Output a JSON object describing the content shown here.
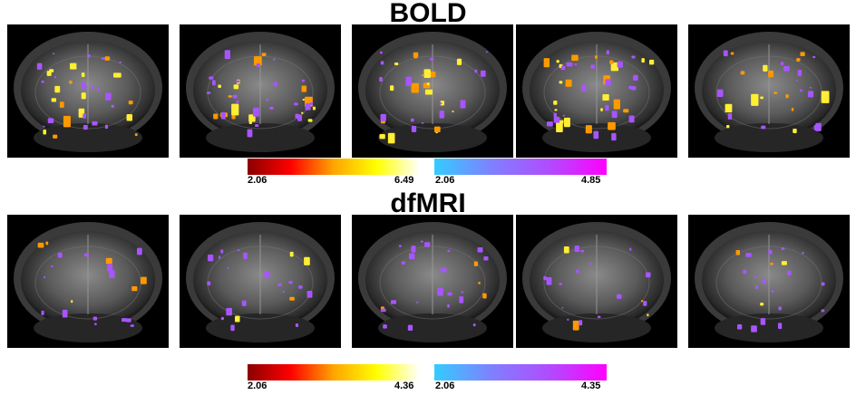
{
  "rows": [
    {
      "title": "BOLD",
      "colorbars": [
        {
          "min": "2.06",
          "max": "6.49",
          "colors": [
            "#8b0000",
            "#ff0000",
            "#ffa500",
            "#ffff00",
            "#ffffff"
          ]
        },
        {
          "min": "2.06",
          "max": "4.85",
          "colors": [
            "#33ccff",
            "#8080ff",
            "#b04cff",
            "#ff00ff"
          ]
        }
      ]
    },
    {
      "title": "dfMRI",
      "colorbars": [
        {
          "min": "2.06",
          "max": "4.36",
          "colors": [
            "#8b0000",
            "#ff0000",
            "#ffa500",
            "#ffff00",
            "#ffffff"
          ]
        },
        {
          "min": "2.06",
          "max": "4.35",
          "colors": [
            "#33ccff",
            "#8080ff",
            "#b04cff",
            "#ff00ff"
          ]
        }
      ]
    }
  ],
  "slices_per_row": 5,
  "overlay_colors": {
    "warm": "#ff9900",
    "warm_hot": "#ffee33",
    "cool": "#a855ff"
  }
}
